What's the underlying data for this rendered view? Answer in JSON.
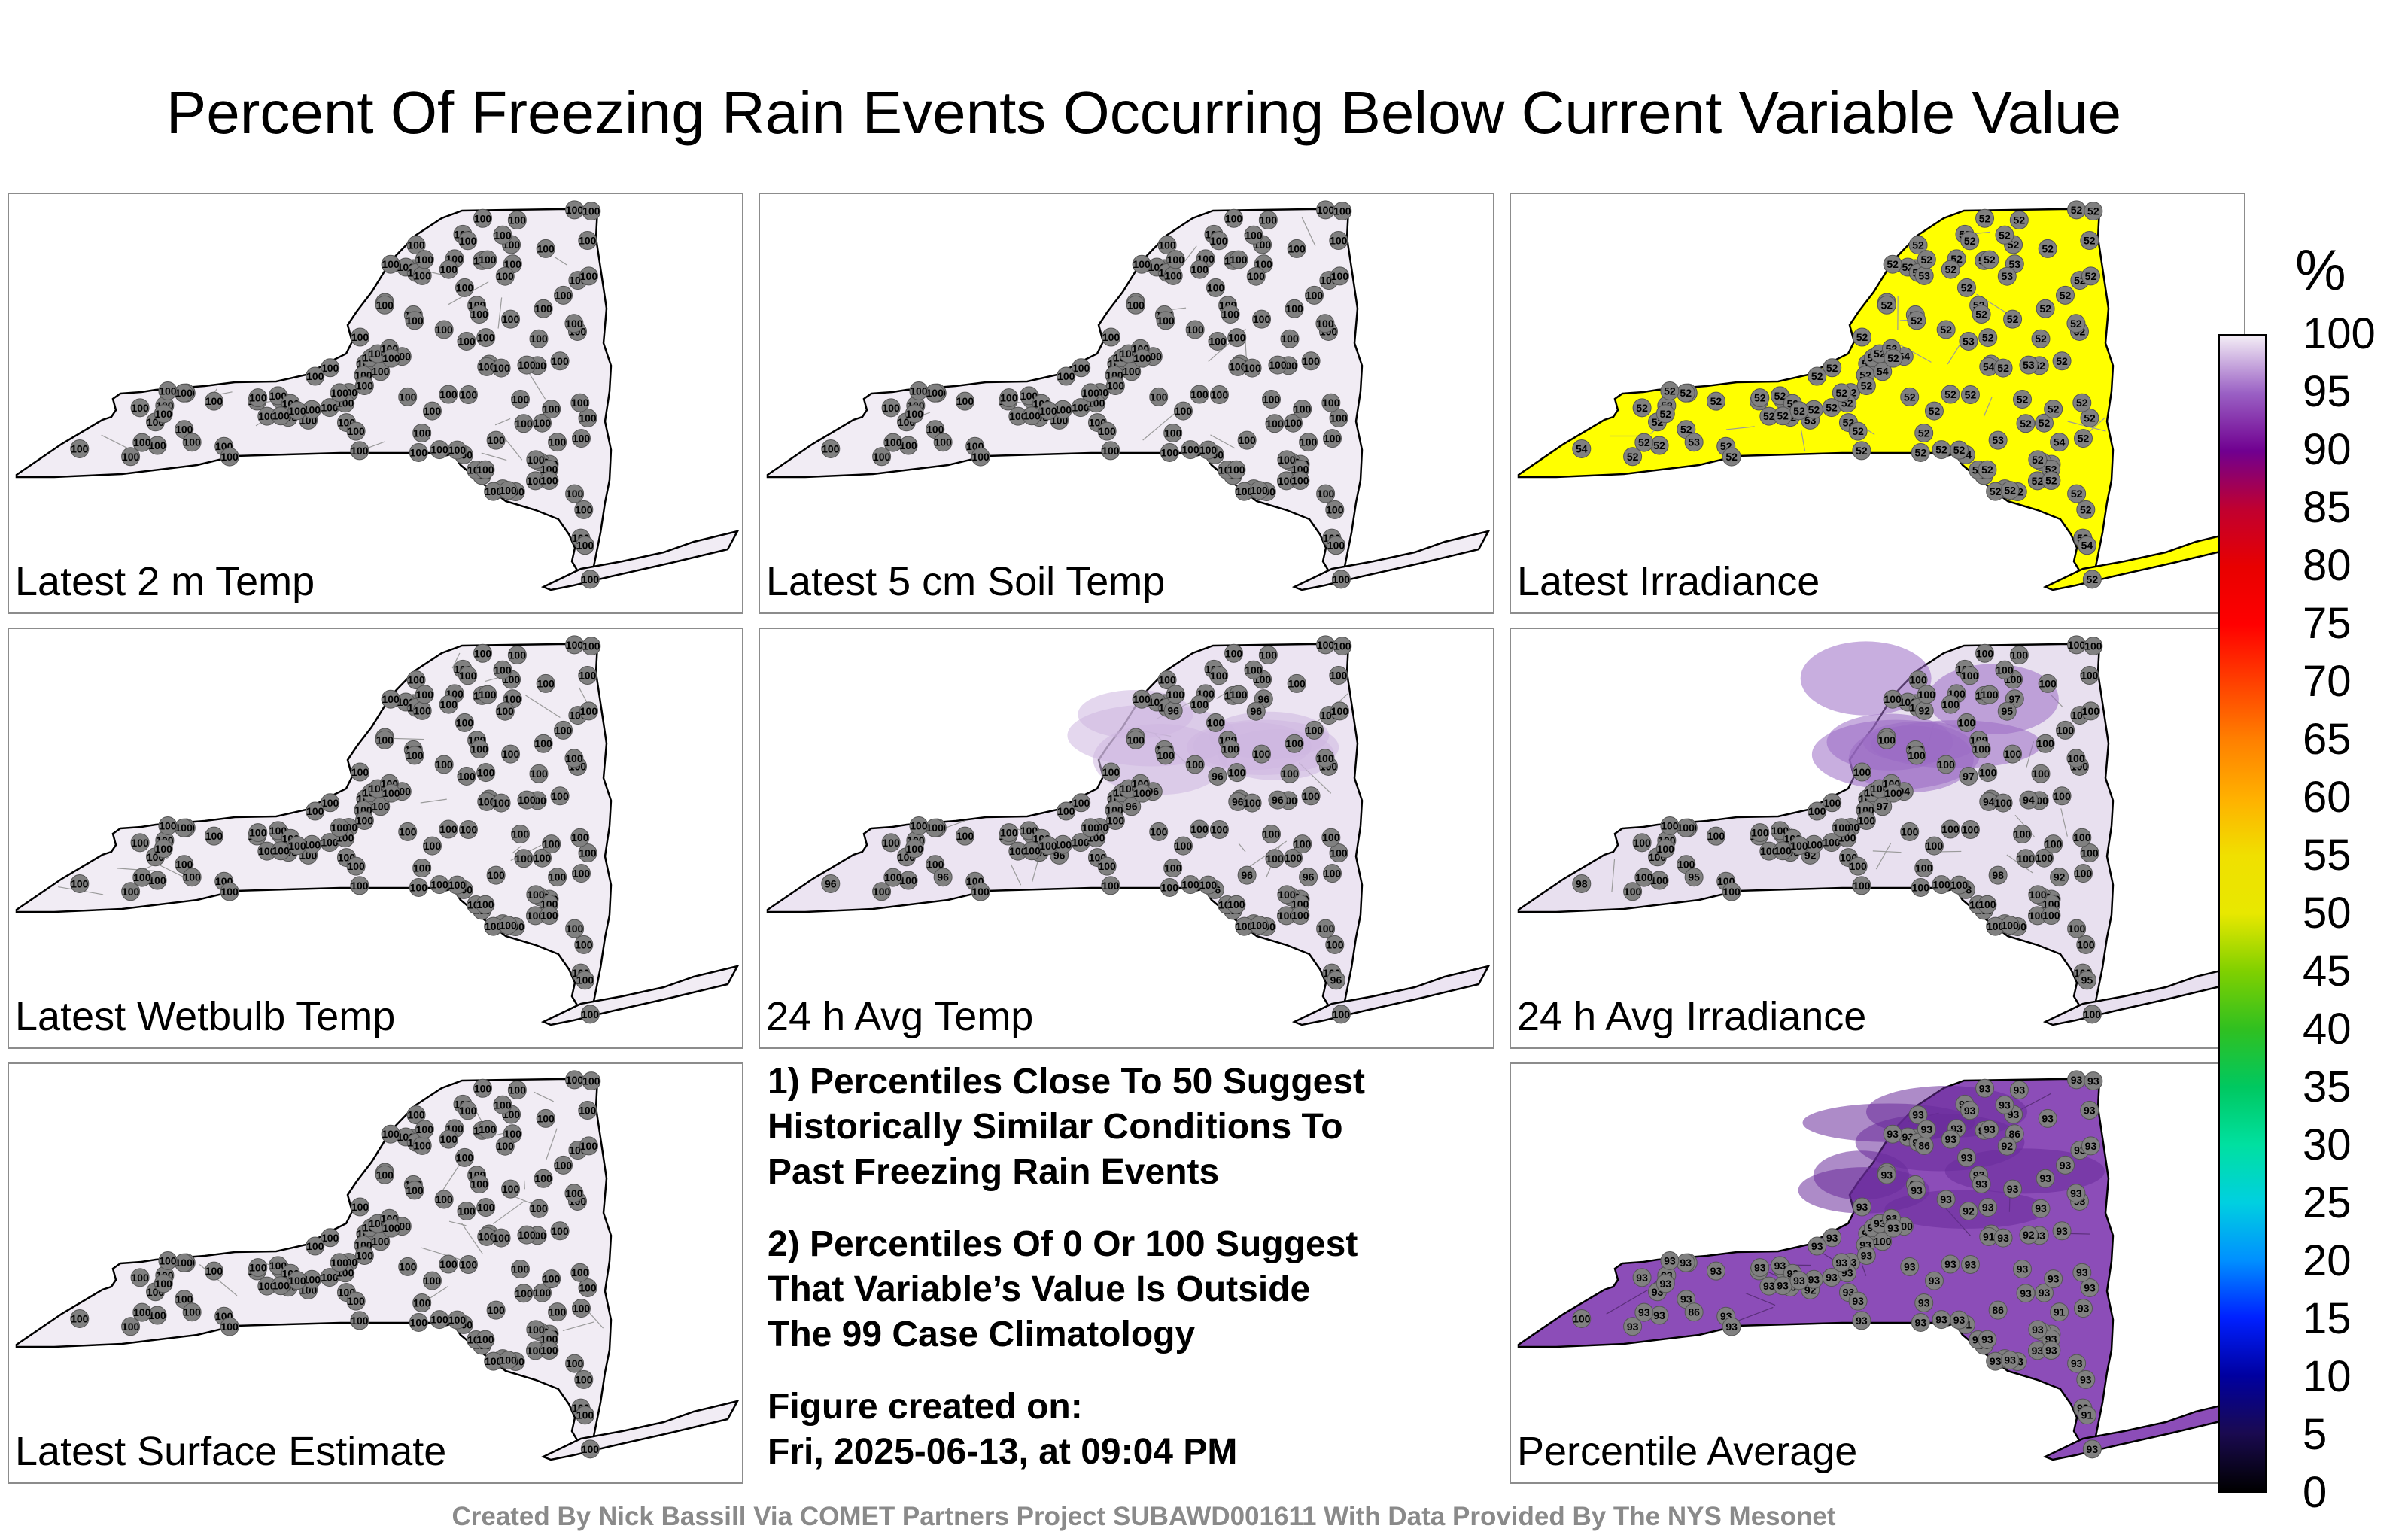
{
  "title": "Percent Of Freezing Rain Events Occurring Below Current Variable Value",
  "panels": [
    {
      "label": "Latest 2 m Temp",
      "fill": "#f1ecf4",
      "value": "100"
    },
    {
      "label": "Latest 5 cm Soil Temp",
      "fill": "#f1ecf4",
      "value": "100"
    },
    {
      "label": "Latest Irradiance",
      "fill": "#ffff00",
      "value": "52",
      "alt_values": [
        "53",
        "54"
      ]
    },
    {
      "label": "Latest Wetbulb Temp",
      "fill": "#f1ecf4",
      "value": "100"
    },
    {
      "label": "24 h Avg Temp",
      "fill": "#ece4f2",
      "value": "100",
      "alt_values": [
        "96",
        "99",
        "96"
      ]
    },
    {
      "label": "24 h Avg Irradiance",
      "fill": "#e8e0ef",
      "value": "100",
      "alt_values": [
        "92",
        "95",
        "94",
        "97",
        "98"
      ]
    },
    {
      "label": "Latest Surface Estimate",
      "fill": "#f1ecf4",
      "value": "100"
    },
    {
      "label": "Percentile Average",
      "fill": "#8c4db8",
      "value": "93",
      "alt_values": [
        "92",
        "91",
        "86",
        "100"
      ]
    }
  ],
  "notes": [
    "1) Percentiles Close To 50 Suggest\nHistorically Similar Conditions To\nPast Freezing Rain Events",
    "2) Percentiles Of 0 Or 100 Suggest\nThat Variable’s Value Is Outside\nThe 99 Case Climatology",
    "Figure created on:\nFri, 2025-06-13, at 09:04 PM"
  ],
  "credit": "Created By Nick Bassill Via COMET Partners Project SUBAWD001611 With Data Provided By The NYS Mesonet",
  "colorbar": {
    "unit": "%",
    "ticks": [
      "0",
      "5",
      "10",
      "15",
      "20",
      "25",
      "30",
      "35",
      "40",
      "45",
      "50",
      "55",
      "60",
      "65",
      "70",
      "75",
      "80",
      "85",
      "90",
      "95",
      "100"
    ]
  }
}
